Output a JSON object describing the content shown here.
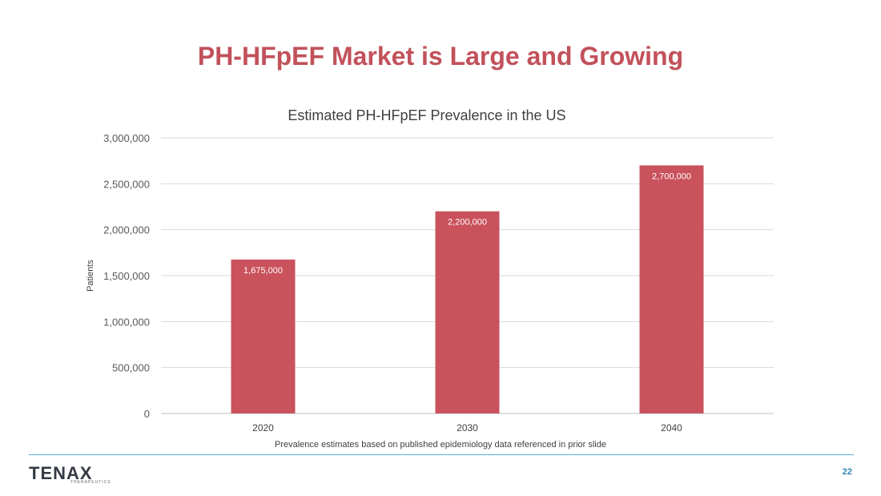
{
  "slide": {
    "title": "PH-HFpEF Market is Large and Growing",
    "page_number": "22",
    "logo_text": "TENAX",
    "logo_subtext": "THERAPEUTICS",
    "accent_color": "#c2515b",
    "rule_color": "#5aaed0"
  },
  "chart_data": {
    "type": "bar",
    "title": "Estimated PH-HFpEF Prevalence in the US",
    "xlabel": "",
    "ylabel": "Patients",
    "categories": [
      "2020",
      "2030",
      "2040"
    ],
    "values": [
      1675000,
      2200000,
      2700000
    ],
    "data_labels": [
      "1,675,000",
      "2,200,000",
      "2,700,000"
    ],
    "yticks": [
      0,
      500000,
      1000000,
      1500000,
      2000000,
      2500000,
      3000000
    ],
    "ytick_labels": [
      "0",
      "500,000",
      "1,000,000",
      "1,500,000",
      "2,000,000",
      "2,500,000",
      "3,000,000"
    ],
    "ylim": [
      0,
      3000000
    ],
    "grid": true,
    "legend": "none",
    "bar_color": "#c9525c",
    "footnote": "Prevalence estimates based on published epidemiology data referenced in prior slide"
  }
}
